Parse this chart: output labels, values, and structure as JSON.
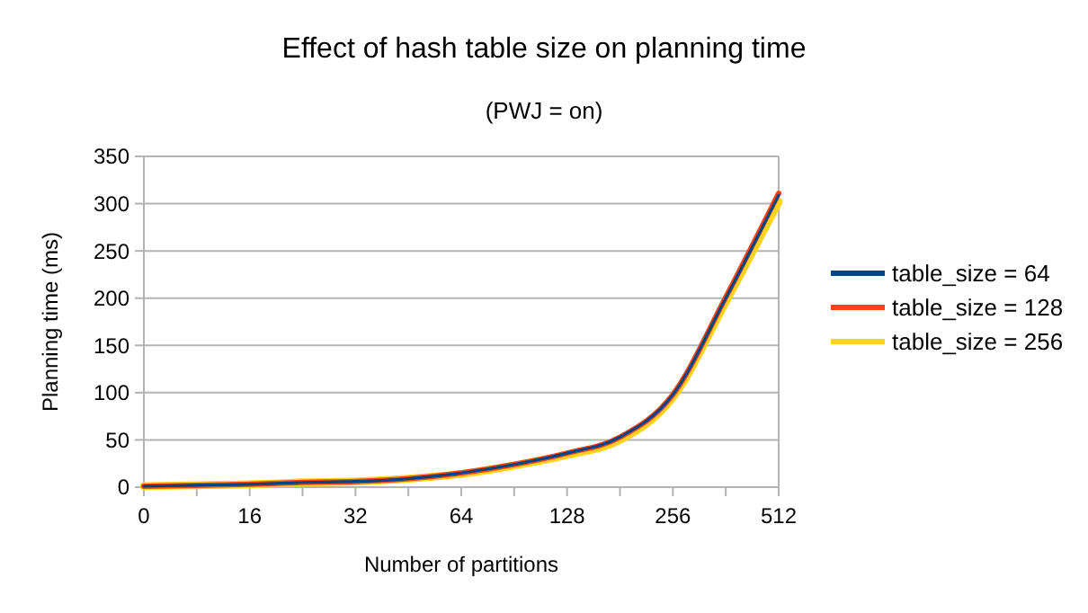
{
  "chart_data": {
    "type": "line",
    "title": "Effect of hash table size on planning time",
    "subtitle": "(PWJ = on)",
    "xlabel": "Number of partitions",
    "ylabel": "Planning time (ms)",
    "categories": [
      "0",
      null,
      "16",
      null,
      "32",
      null,
      "64",
      null,
      "128",
      null,
      "256",
      null,
      "512"
    ],
    "series": [
      {
        "name": "table_size = 64",
        "color": "#004586",
        "values": [
          1,
          2,
          3,
          5,
          6,
          9,
          15,
          24,
          36,
          53,
          98,
          200,
          309
        ]
      },
      {
        "name": "table_size = 128",
        "color": "#ff420e",
        "values": [
          1,
          2,
          3,
          5,
          6,
          9,
          15,
          24,
          36,
          53,
          98,
          201,
          311
        ]
      },
      {
        "name": "table_size = 256",
        "color": "#ffd320",
        "values": [
          1,
          2,
          3,
          5,
          6,
          9,
          14,
          23,
          34,
          50,
          95,
          196,
          302
        ]
      }
    ],
    "ylim": [
      0,
      350
    ],
    "yticks": [
      0,
      50,
      100,
      150,
      200,
      250,
      300,
      350
    ],
    "grid": "y",
    "legend": "right",
    "marker": "none",
    "line_style": "solid"
  }
}
